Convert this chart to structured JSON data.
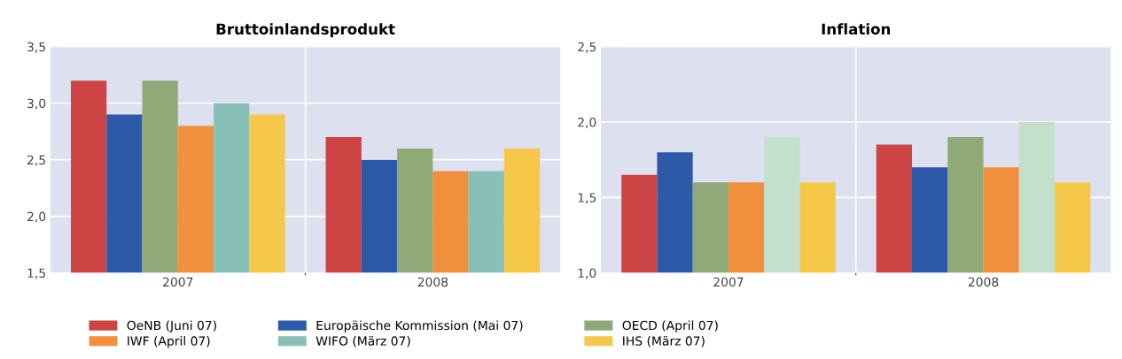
{
  "chart_data": [
    {
      "type": "bar",
      "title": "Bruttoinlandsprodukt",
      "categories": [
        "2007",
        "2008"
      ],
      "ylim": [
        1.5,
        3.5
      ],
      "yticks": [
        {
          "value": 1.5,
          "label": "1,5"
        },
        {
          "value": 2.0,
          "label": "2,0"
        },
        {
          "value": 2.5,
          "label": "2,5"
        },
        {
          "value": 3.0,
          "label": "3,0"
        },
        {
          "value": 3.5,
          "label": "3,5"
        }
      ],
      "grid": true,
      "legend": "bottom",
      "series": [
        {
          "name": "OeNB (Juni 07)",
          "color": "#cc4444",
          "values": [
            3.2,
            2.7
          ]
        },
        {
          "name": "Europäische Kommission (Mai 07)",
          "color": "#2d5aa8",
          "values": [
            2.9,
            2.5
          ]
        },
        {
          "name": "OECD (April 07)",
          "color": "#8faa78",
          "values": [
            3.2,
            2.6
          ]
        },
        {
          "name": "IWF (April 07)",
          "color": "#f0903c",
          "values": [
            2.8,
            2.4
          ]
        },
        {
          "name": "WIFO (März 07)",
          "color": "#88c0b8",
          "values": [
            3.0,
            2.4
          ]
        },
        {
          "name": "IHS (März 07)",
          "color": "#f5c84a",
          "values": [
            2.9,
            2.6
          ]
        }
      ]
    },
    {
      "type": "bar",
      "title": "Inflation",
      "categories": [
        "2007",
        "2008"
      ],
      "ylim": [
        1.0,
        2.5
      ],
      "yticks": [
        {
          "value": 1.0,
          "label": "1,0"
        },
        {
          "value": 1.5,
          "label": "1,5"
        },
        {
          "value": 2.0,
          "label": "2,0"
        },
        {
          "value": 2.5,
          "label": "2,5"
        }
      ],
      "grid": true,
      "series": [
        {
          "color": "#cc4444",
          "values": [
            1.65,
            1.85
          ]
        },
        {
          "color": "#2d5aa8",
          "values": [
            1.8,
            1.7
          ]
        },
        {
          "color": "#8faa78",
          "values": [
            1.6,
            1.9
          ]
        },
        {
          "color": "#f0903c",
          "values": [
            1.6,
            1.7
          ]
        },
        {
          "color": "#c2e0cc",
          "values": [
            1.9,
            2.0
          ]
        },
        {
          "color": "#f5c84a",
          "values": [
            1.6,
            1.6
          ]
        }
      ]
    }
  ]
}
